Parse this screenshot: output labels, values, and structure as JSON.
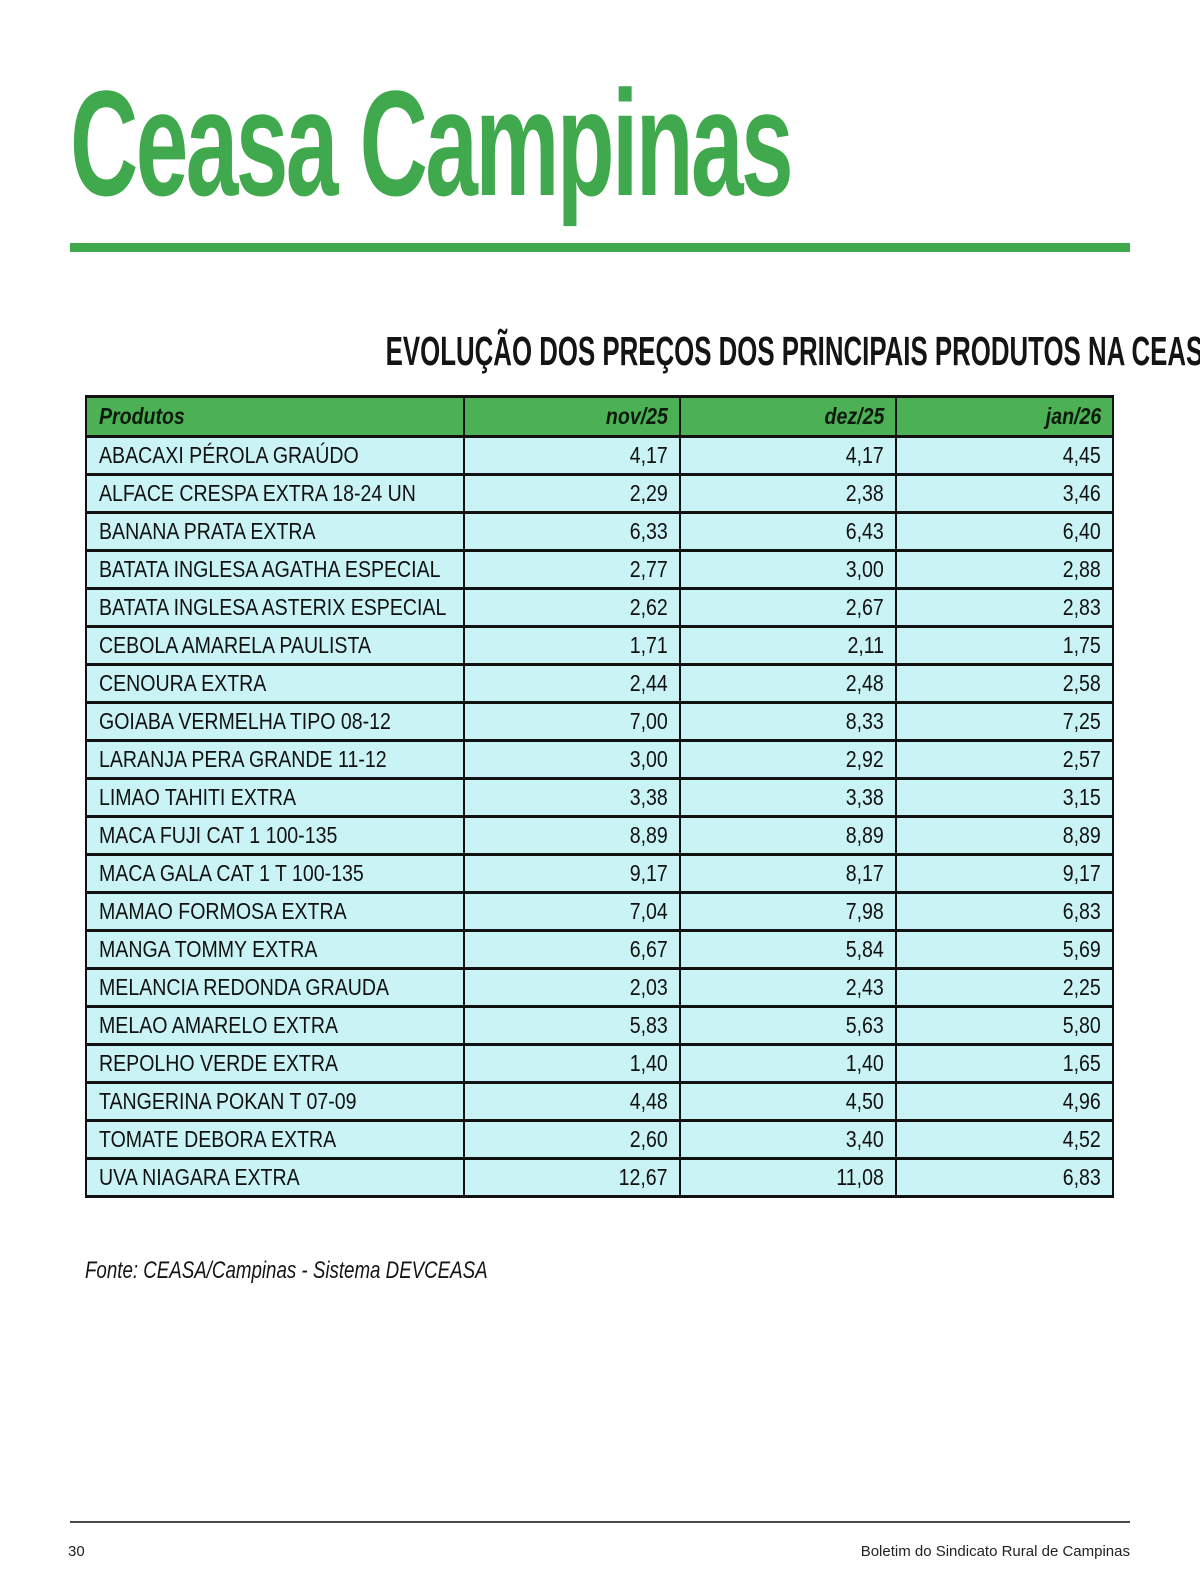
{
  "page": {
    "brand_title": "Ceasa Campinas",
    "section_title": "EVOLUÇÃO DOS PREÇOS DOS PRINCIPAIS PRODUTOS NA CEASA CAMPINAS (R$/kg)",
    "source_note": "Fonte: CEASA/Campinas - Sistema DEVCEASA",
    "footer": {
      "page_number": "30",
      "publication": "Boletim do Sindicato Rural de Campinas"
    }
  },
  "colors": {
    "brand_green": "#41a94d",
    "table_header_green": "#4cb054",
    "cell_cyan": "#c9f3f5",
    "border_black": "#111111"
  },
  "chart_data": {
    "type": "table",
    "title": "EVOLUÇÃO DOS PREÇOS DOS PRINCIPAIS PRODUTOS NA CEASA CAMPINAS (R$/kg)",
    "columns": [
      "Produtos",
      "nov/25",
      "dez/25",
      "jan/26"
    ],
    "rows": [
      [
        "ABACAXI PÉROLA GRAÚDO",
        "4,17",
        "4,17",
        "4,45"
      ],
      [
        "ALFACE CRESPA EXTRA 18-24 UN",
        "2,29",
        "2,38",
        "3,46"
      ],
      [
        "BANANA PRATA EXTRA",
        "6,33",
        "6,43",
        "6,40"
      ],
      [
        "BATATA INGLESA AGATHA ESPECIAL",
        "2,77",
        "3,00",
        "2,88"
      ],
      [
        "BATATA INGLESA ASTERIX ESPECIAL",
        "2,62",
        "2,67",
        "2,83"
      ],
      [
        "CEBOLA AMARELA PAULISTA",
        "1,71",
        "2,11",
        "1,75"
      ],
      [
        "CENOURA EXTRA",
        "2,44",
        "2,48",
        "2,58"
      ],
      [
        "GOIABA VERMELHA TIPO 08-12",
        "7,00",
        "8,33",
        "7,25"
      ],
      [
        "LARANJA PERA GRANDE 11-12",
        "3,00",
        "2,92",
        "2,57"
      ],
      [
        "LIMAO TAHITI EXTRA",
        "3,38",
        "3,38",
        "3,15"
      ],
      [
        "MACA FUJI CAT 1 100-135",
        "8,89",
        "8,89",
        "8,89"
      ],
      [
        "MACA GALA CAT 1 T 100-135",
        "9,17",
        "8,17",
        "9,17"
      ],
      [
        "MAMAO FORMOSA EXTRA",
        "7,04",
        "7,98",
        "6,83"
      ],
      [
        "MANGA TOMMY EXTRA",
        "6,67",
        "5,84",
        "5,69"
      ],
      [
        "MELANCIA REDONDA GRAUDA",
        "2,03",
        "2,43",
        "2,25"
      ],
      [
        "MELAO AMARELO EXTRA",
        "5,83",
        "5,63",
        "5,80"
      ],
      [
        "REPOLHO VERDE EXTRA",
        "1,40",
        "1,40",
        "1,65"
      ],
      [
        "TANGERINA POKAN T 07-09",
        "4,48",
        "4,50",
        "4,96"
      ],
      [
        "TOMATE DEBORA EXTRA",
        "2,60",
        "3,40",
        "4,52"
      ],
      [
        "UVA NIAGARA EXTRA",
        "12,67",
        "11,08",
        "6,83"
      ]
    ]
  }
}
